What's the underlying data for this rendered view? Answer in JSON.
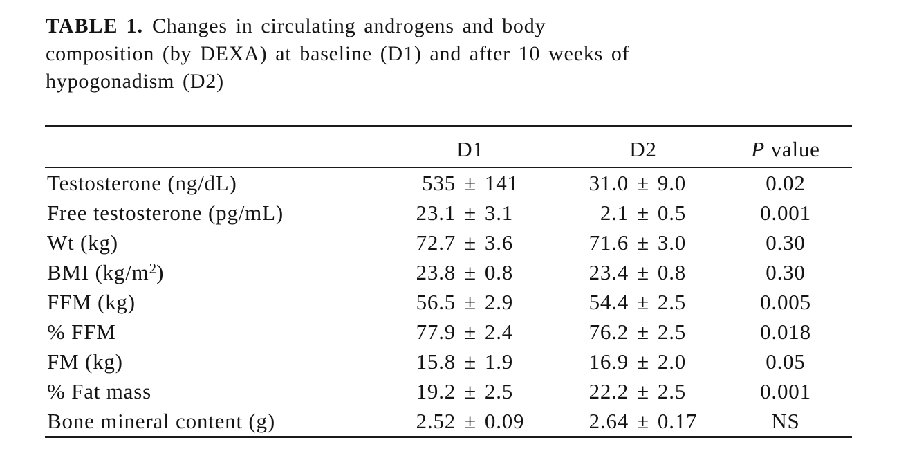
{
  "caption": {
    "label": "TABLE 1.",
    "line1": "Changes in circulating androgens and body",
    "line2": "composition (by DEXA) at baseline (D1) and after 10 weeks of",
    "line3": "hypogonadism (D2)"
  },
  "table": {
    "pm_symbol": "±",
    "columns": {
      "label": "",
      "d1": "D1",
      "d2": "D2",
      "p_italic": "P",
      "p_rest": " value"
    },
    "rows": [
      {
        "label": "Testosterone (ng/dL)",
        "d1_mean": "535",
        "d1_sd": "141",
        "d2_mean": "31.0",
        "d2_sd": "9.0",
        "p": "0.02"
      },
      {
        "label": "Free testosterone (pg/mL)",
        "d1_mean": "23.1",
        "d1_sd": "3.1",
        "d2_mean": "2.1",
        "d2_sd": "0.5",
        "p": "0.001"
      },
      {
        "label": "Wt (kg)",
        "d1_mean": "72.7",
        "d1_sd": "3.6",
        "d2_mean": "71.6",
        "d2_sd": "3.0",
        "p": "0.30"
      },
      {
        "label": "BMI (kg/m",
        "label_sup": "2",
        "label_end": ")",
        "d1_mean": "23.8",
        "d1_sd": "0.8",
        "d2_mean": "23.4",
        "d2_sd": "0.8",
        "p": "0.30"
      },
      {
        "label": "FFM (kg)",
        "d1_mean": "56.5",
        "d1_sd": "2.9",
        "d2_mean": "54.4",
        "d2_sd": "2.5",
        "p": "0.005"
      },
      {
        "label": "% FFM",
        "d1_mean": "77.9",
        "d1_sd": "2.4",
        "d2_mean": "76.2",
        "d2_sd": "2.5",
        "p": "0.018"
      },
      {
        "label": "FM (kg)",
        "d1_mean": "15.8",
        "d1_sd": "1.9",
        "d2_mean": "16.9",
        "d2_sd": "2.0",
        "p": "0.05"
      },
      {
        "label": "% Fat mass",
        "d1_mean": "19.2",
        "d1_sd": "2.5",
        "d2_mean": "22.2",
        "d2_sd": "2.5",
        "p": "0.001"
      },
      {
        "label": "Bone mineral content (g)",
        "d1_mean": "2.52",
        "d1_sd": "0.09",
        "d2_mean": "2.64",
        "d2_sd": "0.17",
        "p": "NS"
      }
    ]
  }
}
